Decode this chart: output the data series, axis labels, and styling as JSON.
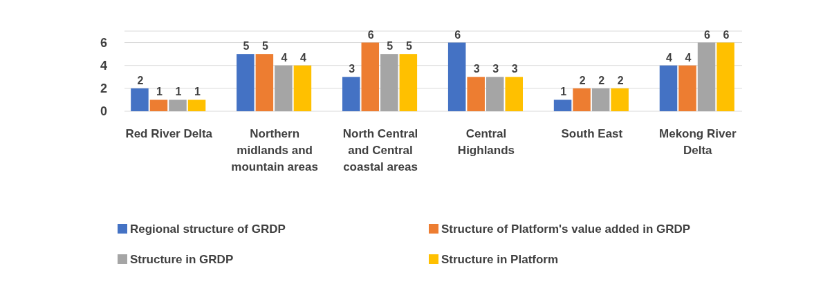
{
  "chart_data": {
    "type": "bar",
    "categories": [
      "Red River Delta",
      "Northern midlands and mountain areas",
      "North Central and Central coastal areas",
      "Central Highlands",
      "South East",
      "Mekong River Delta"
    ],
    "series": [
      {
        "name": "Regional structure of GRDP",
        "color": "#4472c4",
        "values": [
          2,
          5,
          3,
          6,
          1,
          4
        ]
      },
      {
        "name": "Structure of Platform's value added in GRDP",
        "color": "#ed7d31",
        "values": [
          1,
          5,
          6,
          3,
          2,
          4
        ]
      },
      {
        "name": "Structure in GRDP",
        "color": "#a5a5a5",
        "values": [
          1,
          4,
          5,
          3,
          2,
          6
        ]
      },
      {
        "name": "Structure in Platform",
        "color": "#ffc000",
        "values": [
          1,
          4,
          5,
          3,
          2,
          6
        ]
      }
    ],
    "ylim": [
      0,
      7
    ],
    "yticks": [
      0,
      2,
      4,
      6
    ],
    "grid": "y",
    "data_labels": true,
    "legend": "bottom"
  }
}
